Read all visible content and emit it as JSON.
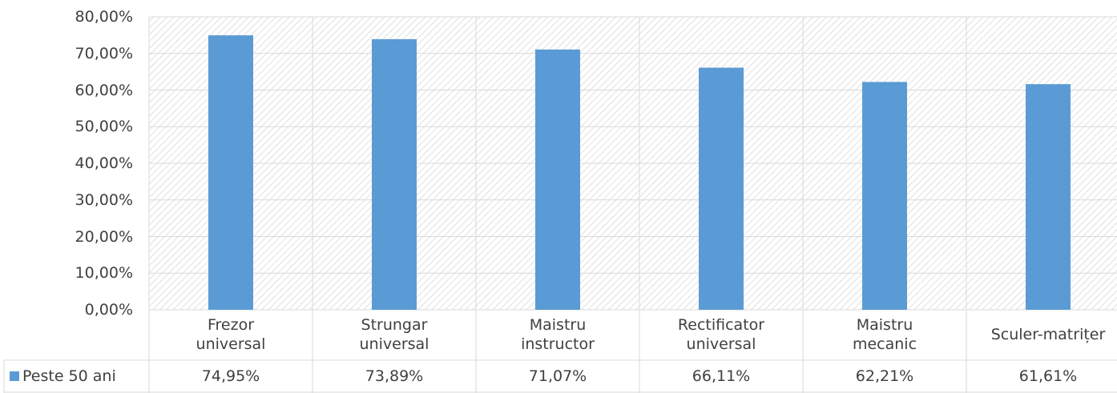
{
  "chart_data": {
    "type": "bar",
    "categories": [
      "Frezor\nuniversal",
      "Strungar\nuniversal",
      "Maistru\ninstructor",
      "Rectificator\nuniversal",
      "Maistru\nmecanic",
      "Sculer-matrițer"
    ],
    "series": [
      {
        "name": "Peste 50 ani",
        "color": "#5b9bd5",
        "values": [
          74.95,
          73.89,
          71.07,
          66.11,
          62.21,
          61.61
        ],
        "value_labels": [
          "74,95%",
          "73,89%",
          "71,07%",
          "66,11%",
          "62,21%",
          "61,61%"
        ]
      }
    ],
    "ylim": [
      0,
      80
    ],
    "yticks": [
      {
        "value": 0,
        "label": "0,00%"
      },
      {
        "value": 10,
        "label": "10,00%"
      },
      {
        "value": 20,
        "label": "20,00%"
      },
      {
        "value": 30,
        "label": "30,00%"
      },
      {
        "value": 40,
        "label": "40,00%"
      },
      {
        "value": 50,
        "label": "50,00%"
      },
      {
        "value": 60,
        "label": "60,00%"
      },
      {
        "value": 70,
        "label": "70,00%"
      },
      {
        "value": 80,
        "label": "80,00%"
      }
    ],
    "grid": true
  }
}
